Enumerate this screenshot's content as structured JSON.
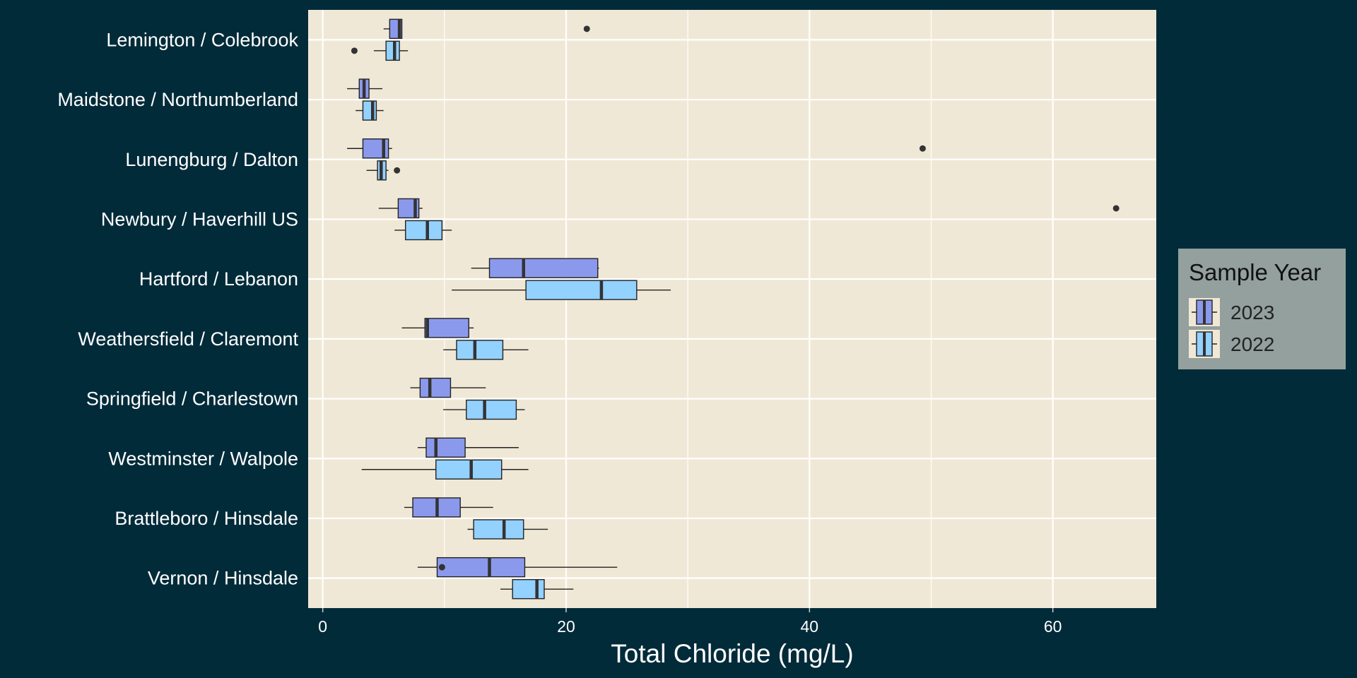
{
  "chart_data": {
    "type": "boxplot",
    "orientation": "horizontal",
    "title": "",
    "xlabel": "Total Chloride (mg/L)",
    "ylabel": "",
    "xlim": [
      -1.2,
      68.5
    ],
    "x_ticks": [
      0,
      20,
      40,
      60
    ],
    "grid": true,
    "legend": {
      "title": "Sample Year",
      "position": "right"
    },
    "colors": {
      "page_background": "#022b3a",
      "panel_background": "#f0e8d6",
      "grid": "#ffffff",
      "legend_background": "#93a09d",
      "2023": "#8b99ed",
      "2022": "#93d1ff",
      "outlier": "#333333",
      "median": "#333333"
    },
    "categories": [
      "Lemington / Colebrook",
      "Maidstone / Northumberland",
      "Lunengburg / Dalton",
      "Newbury / Haverhill US",
      "Hartford / Lebanon",
      "Weathersfield / Claremont",
      "Springfield / Charlestown",
      "Westminster / Walpole",
      "Brattleboro / Hinsdale",
      "Vernon / Hinsdale"
    ],
    "series": [
      {
        "name": "2023",
        "color": "#8b99ed",
        "boxes": [
          {
            "min": 5.0,
            "q1": 5.5,
            "median": 6.3,
            "q3": 6.5,
            "max": 6.5,
            "outliers": [
              21.7
            ]
          },
          {
            "min": 2.0,
            "q1": 3.0,
            "median": 3.4,
            "q3": 3.8,
            "max": 4.9,
            "outliers": []
          },
          {
            "min": 2.0,
            "q1": 3.3,
            "median": 5.0,
            "q3": 5.4,
            "max": 5.7,
            "outliers": [
              49.3
            ]
          },
          {
            "min": 4.6,
            "q1": 6.2,
            "median": 7.6,
            "q3": 7.9,
            "max": 8.2,
            "outliers": [
              65.2
            ]
          },
          {
            "min": 12.2,
            "q1": 13.7,
            "median": 16.5,
            "q3": 22.6,
            "max": 22.7,
            "outliers": []
          },
          {
            "min": 6.5,
            "q1": 8.4,
            "median": 8.6,
            "q3": 12.0,
            "max": 12.4,
            "outliers": []
          },
          {
            "min": 7.2,
            "q1": 8.0,
            "median": 8.8,
            "q3": 10.5,
            "max": 13.4,
            "outliers": []
          },
          {
            "min": 7.8,
            "q1": 8.5,
            "median": 9.3,
            "q3": 11.7,
            "max": 16.1,
            "outliers": []
          },
          {
            "min": 6.7,
            "q1": 7.4,
            "median": 9.4,
            "q3": 11.3,
            "max": 14.0,
            "outliers": []
          },
          {
            "min": 7.8,
            "q1": 9.4,
            "median": 13.7,
            "q3": 16.6,
            "max": 24.2,
            "outliers": [
              9.8
            ]
          }
        ]
      },
      {
        "name": "2022",
        "color": "#93d1ff",
        "boxes": [
          {
            "min": 4.2,
            "q1": 5.2,
            "median": 5.9,
            "q3": 6.3,
            "max": 7.0,
            "outliers": [
              2.6
            ]
          },
          {
            "min": 2.7,
            "q1": 3.3,
            "median": 4.1,
            "q3": 4.4,
            "max": 5.0,
            "outliers": []
          },
          {
            "min": 3.6,
            "q1": 4.5,
            "median": 4.8,
            "q3": 5.2,
            "max": 5.4,
            "outliers": [
              6.1
            ]
          },
          {
            "min": 5.9,
            "q1": 6.8,
            "median": 8.6,
            "q3": 9.8,
            "max": 10.6,
            "outliers": []
          },
          {
            "min": 10.6,
            "q1": 16.7,
            "median": 22.9,
            "q3": 25.8,
            "max": 28.6,
            "outliers": []
          },
          {
            "min": 9.9,
            "q1": 11.0,
            "median": 12.5,
            "q3": 14.8,
            "max": 16.9,
            "outliers": []
          },
          {
            "min": 9.9,
            "q1": 11.8,
            "median": 13.3,
            "q3": 15.9,
            "max": 16.6,
            "outliers": []
          },
          {
            "min": 3.2,
            "q1": 9.3,
            "median": 12.2,
            "q3": 14.7,
            "max": 16.9,
            "outliers": []
          },
          {
            "min": 11.9,
            "q1": 12.4,
            "median": 14.9,
            "q3": 16.5,
            "max": 18.5,
            "outliers": []
          },
          {
            "min": 14.6,
            "q1": 15.6,
            "median": 17.6,
            "q3": 18.2,
            "max": 20.6,
            "outliers": []
          }
        ]
      }
    ]
  }
}
